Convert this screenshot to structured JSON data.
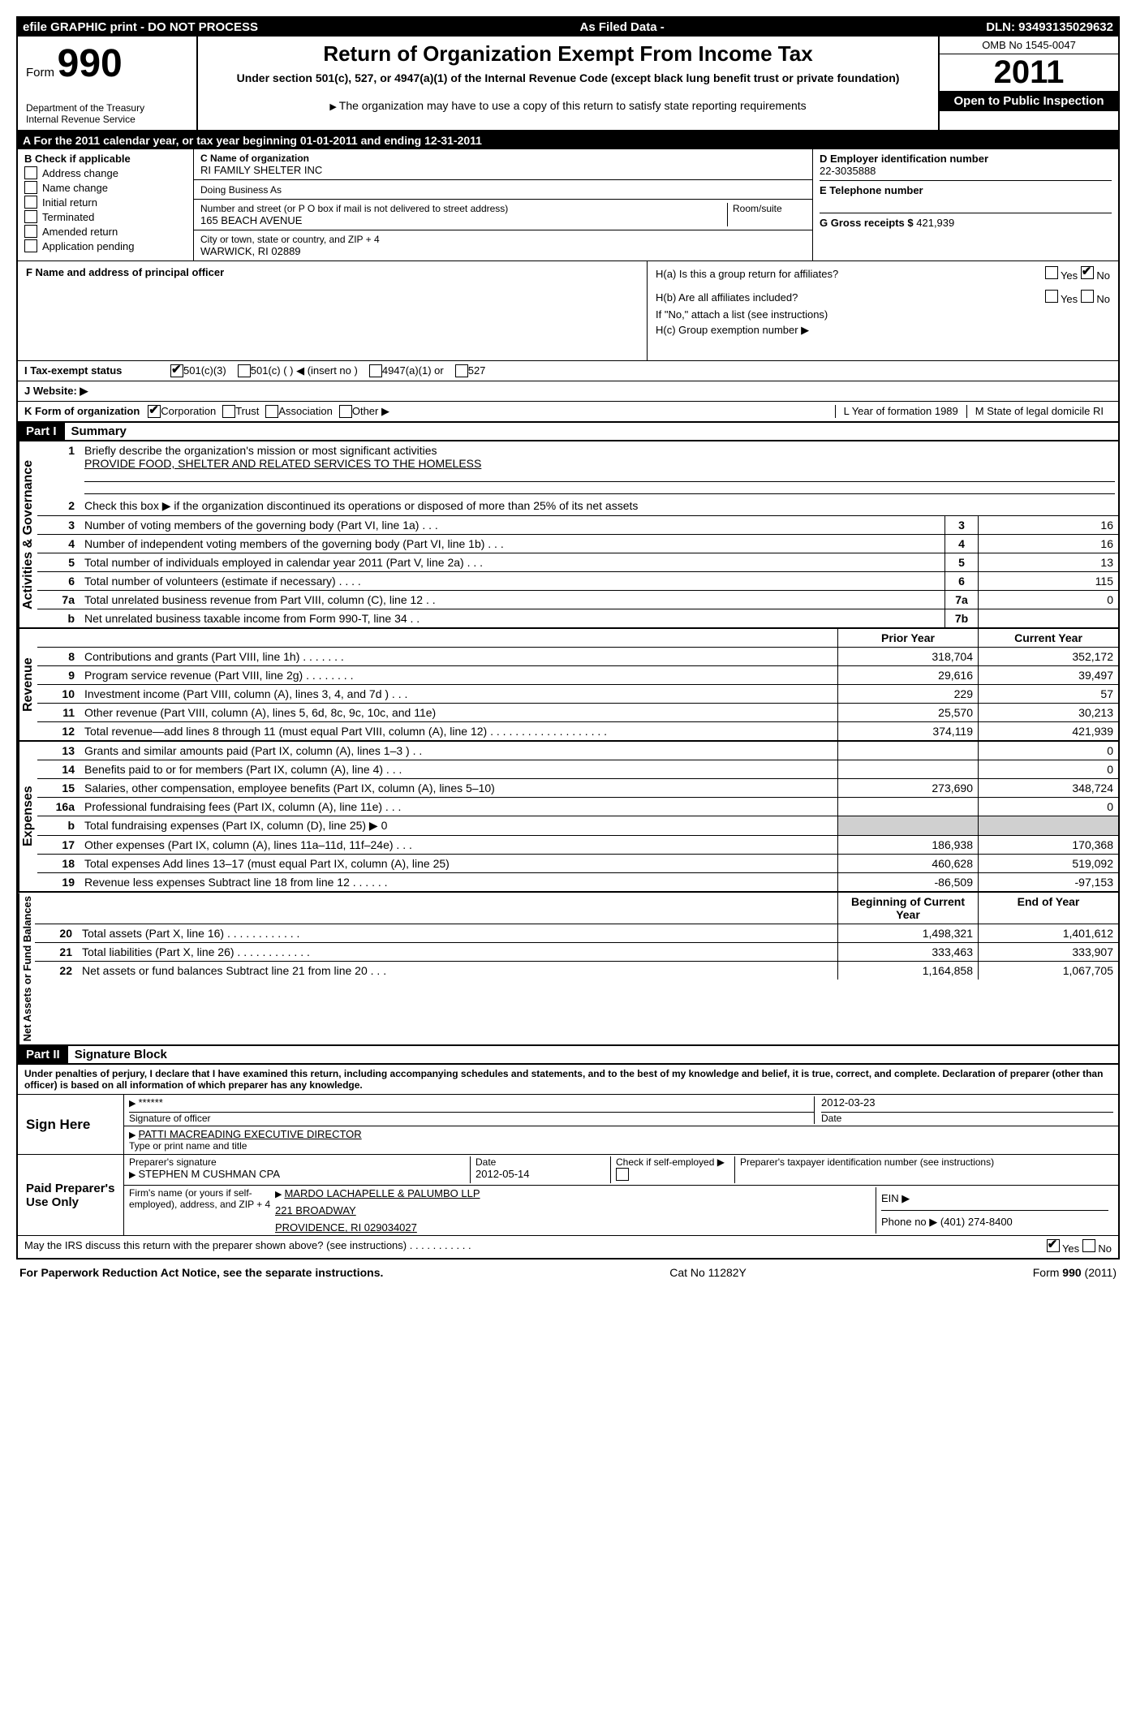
{
  "top_bar": {
    "left": "efile GRAPHIC print - DO NOT PROCESS",
    "center": "As Filed Data -",
    "right": "DLN: 93493135029632"
  },
  "header": {
    "form_label": "Form",
    "form_num": "990",
    "dept": "Department of the Treasury",
    "irs": "Internal Revenue Service",
    "title": "Return of Organization Exempt From Income Tax",
    "subtitle": "Under section 501(c), 527, or 4947(a)(1) of the Internal Revenue Code (except black lung benefit trust or private foundation)",
    "note": "The organization may have to use a copy of this return to satisfy state reporting requirements",
    "omb": "OMB No 1545-0047",
    "year": "2011",
    "open_public": "Open to Public Inspection"
  },
  "section_a": "A  For the 2011 calendar year, or tax year beginning 01-01-2011    and ending 12-31-2011",
  "box_b": {
    "label": "B Check if applicable",
    "items": [
      "Address change",
      "Name change",
      "Initial return",
      "Terminated",
      "Amended return",
      "Application pending"
    ]
  },
  "box_c": {
    "label_name": "C Name of organization",
    "name": "RI FAMILY SHELTER INC",
    "dba_label": "Doing Business As",
    "street_label": "Number and street (or P O  box if mail is not delivered to street address)",
    "room_label": "Room/suite",
    "street": "165 BEACH AVENUE",
    "city_label": "City or town, state or country, and ZIP + 4",
    "city": "WARWICK, RI  02889"
  },
  "box_d": {
    "ein_label": "D Employer identification number",
    "ein": "22-3035888",
    "tel_label": "E Telephone number",
    "gross_label": "G Gross receipts $",
    "gross": "421,939"
  },
  "box_f": "F   Name and address of principal officer",
  "box_h": {
    "ha": "H(a)  Is this a group return for affiliates?",
    "hb": "H(b)  Are all affiliates included?",
    "hb_note": "If \"No,\" attach a list  (see instructions)",
    "hc": "H(c)   Group exemption number ▶"
  },
  "row_i": {
    "label": "I   Tax-exempt status",
    "opts": [
      "501(c)(3)",
      "501(c) (   ) ◀ (insert no )",
      "4947(a)(1) or",
      "527"
    ]
  },
  "row_j": "J  Website: ▶",
  "row_k": {
    "label": "K Form of organization",
    "opts": [
      "Corporation",
      "Trust",
      "Association",
      "Other ▶"
    ],
    "year_label": "L Year of formation  1989",
    "state_label": "M State of legal domicile  RI"
  },
  "part1": {
    "num": "Part I",
    "title": "Summary"
  },
  "activities": {
    "label": "Activities & Governance",
    "l1_num": "1",
    "l1": "Briefly describe the organization's mission or most significant activities",
    "l1_val": "PROVIDE FOOD, SHELTER AND RELATED SERVICES TO THE HOMELESS",
    "l2_num": "2",
    "l2": "Check this box ▶     if the organization discontinued its operations or disposed of more than 25% of its net assets",
    "rows": [
      {
        "n": "3",
        "d": "Number of voting members of the governing body (Part VI, line 1a)   .   .   .",
        "b": "3",
        "v": "16"
      },
      {
        "n": "4",
        "d": "Number of independent voting members of the governing body (Part VI, line 1b)   .   .   .",
        "b": "4",
        "v": "16"
      },
      {
        "n": "5",
        "d": "Total number of individuals employed in calendar year 2011 (Part V, line 2a)   .   .   .",
        "b": "5",
        "v": "13"
      },
      {
        "n": "6",
        "d": "Total number of volunteers (estimate if necessary)   .   .   .   .",
        "b": "6",
        "v": "115"
      },
      {
        "n": "7a",
        "d": "Total unrelated business revenue from Part VIII, column (C), line 12   .   .",
        "b": "7a",
        "v": "0"
      },
      {
        "n": "b",
        "d": "Net unrelated business taxable income from Form 990-T, line 34   .   .",
        "b": "7b",
        "v": ""
      }
    ]
  },
  "yearcols": {
    "prior": "Prior Year",
    "current": "Current Year"
  },
  "revenue": {
    "label": "Revenue",
    "rows": [
      {
        "n": "8",
        "d": "Contributions and grants (Part VIII, line 1h)   .   .   .   .   .   .   .",
        "p": "318,704",
        "c": "352,172"
      },
      {
        "n": "9",
        "d": "Program service revenue (Part VIII, line 2g)   .   .   .   .   .   .   .   .",
        "p": "29,616",
        "c": "39,497"
      },
      {
        "n": "10",
        "d": "Investment income (Part VIII, column (A), lines 3, 4, and 7d )   .   .   .",
        "p": "229",
        "c": "57"
      },
      {
        "n": "11",
        "d": "Other revenue (Part VIII, column (A), lines 5, 6d, 8c, 9c, 10c, and 11e)",
        "p": "25,570",
        "c": "30,213"
      },
      {
        "n": "12",
        "d": "Total revenue—add lines 8 through 11 (must equal Part VIII, column (A), line 12)   .   .   .   .   .   .   .   .   .   .   .   .   .   .   .   .   .   .   .",
        "p": "374,119",
        "c": "421,939"
      }
    ]
  },
  "expenses": {
    "label": "Expenses",
    "rows": [
      {
        "n": "13",
        "d": "Grants and similar amounts paid (Part IX, column (A), lines 1–3 )   .   .",
        "p": "",
        "c": "0"
      },
      {
        "n": "14",
        "d": "Benefits paid to or for members (Part IX, column (A), line 4)   .   .   .",
        "p": "",
        "c": "0"
      },
      {
        "n": "15",
        "d": "Salaries, other compensation, employee benefits (Part IX, column (A), lines 5–10)",
        "p": "273,690",
        "c": "348,724"
      },
      {
        "n": "16a",
        "d": "Professional fundraising fees (Part IX, column (A), line 11e)   .   .   .",
        "p": "",
        "c": "0"
      },
      {
        "n": "b",
        "d": "Total fundraising expenses (Part IX, column (D), line 25) ▶ 0",
        "p": "shaded",
        "c": "shaded"
      },
      {
        "n": "17",
        "d": "Other expenses (Part IX, column (A), lines 11a–11d, 11f–24e)   .   .   .",
        "p": "186,938",
        "c": "170,368"
      },
      {
        "n": "18",
        "d": "Total expenses  Add lines 13–17 (must equal Part IX, column (A), line 25)",
        "p": "460,628",
        "c": "519,092"
      },
      {
        "n": "19",
        "d": "Revenue less expenses  Subtract line 18 from line 12   .   .   .   .   .   .",
        "p": "-86,509",
        "c": "-97,153"
      }
    ]
  },
  "netassets": {
    "label": "Net Assets or Fund Balances",
    "header": {
      "p": "Beginning of Current Year",
      "c": "End of Year"
    },
    "rows": [
      {
        "n": "20",
        "d": "Total assets (Part X, line 16)   .   .   .   .   .   .   .   .   .   .   .   .",
        "p": "1,498,321",
        "c": "1,401,612"
      },
      {
        "n": "21",
        "d": "Total liabilities (Part X, line 26)   .   .   .   .   .   .   .   .   .   .   .   .",
        "p": "333,463",
        "c": "333,907"
      },
      {
        "n": "22",
        "d": "Net assets or fund balances  Subtract line 21 from line 20   .   .   .",
        "p": "1,164,858",
        "c": "1,067,705"
      }
    ]
  },
  "part2": {
    "num": "Part II",
    "title": "Signature Block"
  },
  "perjury": "Under penalties of perjury, I declare that I have examined this return, including accompanying schedules and statements, and to the best of my knowledge and belief, it is true, correct, and complete. Declaration of preparer (other than officer) is based on all information of which preparer has any knowledge.",
  "sign": {
    "label": "Sign Here",
    "sig_stars": "******",
    "sig_label": "Signature of officer",
    "date": "2012-03-23",
    "date_label": "Date",
    "name": "PATTI MACREADING EXECUTIVE DIRECTOR",
    "name_label": "Type or print name and title"
  },
  "preparer": {
    "label": "Paid Preparer's Use Only",
    "sig_label": "Preparer's signature",
    "name": "STEPHEN M CUSHMAN CPA",
    "date_label": "Date",
    "date": "2012-05-14",
    "self_label": "Check if self-employed ▶",
    "ptin_label": "Preparer's taxpayer identification number (see instructions)",
    "firm_label": "Firm's name (or yours if self-employed), address, and ZIP + 4",
    "firm": "MARDO LACHAPELLE & PALUMBO LLP",
    "firm_addr1": "221 BROADWAY",
    "firm_addr2": "PROVIDENCE, RI  029034027",
    "ein_label": "EIN ▶",
    "phone_label": "Phone no  ▶  (401) 274-8400"
  },
  "discuss": "May the IRS discuss this return with the preparer shown above? (see instructions)   .   .   .   .   .   .   .   .   .   .   .",
  "footer": {
    "left": "For Paperwork Reduction Act Notice, see the separate instructions.",
    "center": "Cat No 11282Y",
    "right": "Form 990 (2011)"
  }
}
